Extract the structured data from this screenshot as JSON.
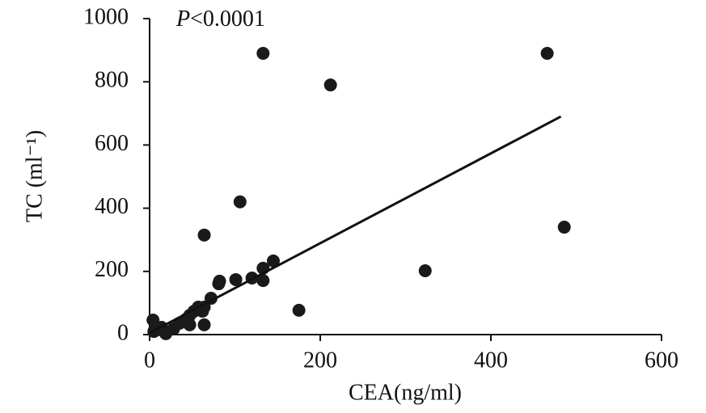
{
  "chart_data": {
    "type": "scatter",
    "annotation": "P<0.0001",
    "x_label": "CEA(ng/ml)",
    "y_label": "TC (ml⁻¹)",
    "color": "#1a1a1a",
    "series": [
      {
        "x": [
          133,
          466,
          212,
          106,
          64,
          486,
          323,
          175,
          145,
          133,
          133,
          120,
          101,
          82,
          81,
          72,
          64,
          62,
          57,
          52,
          47,
          43,
          64,
          47,
          4,
          14,
          19,
          28,
          35,
          5,
          9
        ],
        "values": [
          890,
          890,
          790,
          420,
          315,
          340,
          202,
          77,
          233,
          210,
          171,
          179,
          174,
          169,
          161,
          115,
          87,
          74,
          87,
          74,
          61,
          49,
          31,
          31,
          46,
          23,
          3,
          18,
          36,
          10,
          15
        ]
      }
    ],
    "trendline": {
      "x": [
        0,
        482
      ],
      "y": [
        5,
        690
      ]
    },
    "xlim": [
      0,
      600
    ],
    "xticks": [
      0,
      200,
      400,
      600
    ],
    "ylim": [
      0,
      1000
    ],
    "yticks": [
      0,
      200,
      400,
      600,
      800,
      1000
    ]
  }
}
